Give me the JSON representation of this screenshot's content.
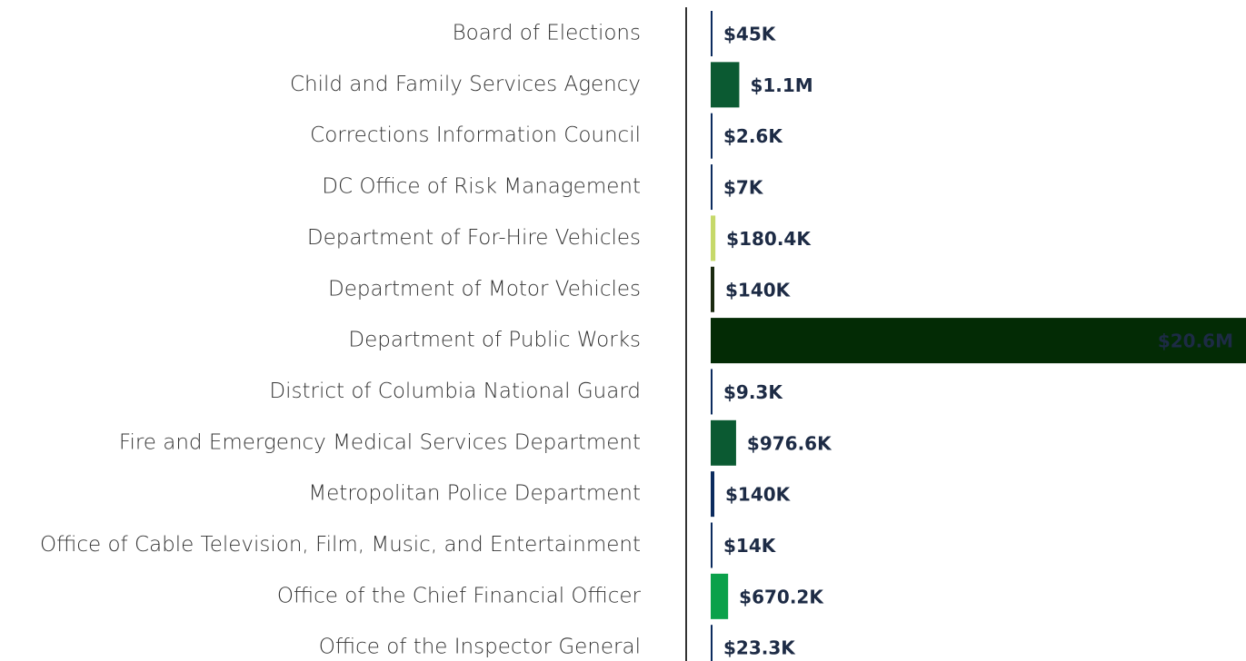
{
  "chart_data": {
    "type": "bar",
    "orientation": "horizontal",
    "categories": [
      "Board of Elections",
      "Child and Family Services Agency",
      "Corrections Information Council",
      "DC Office of Risk Management",
      "Department of For-Hire Vehicles",
      "Department of Motor Vehicles",
      "Department of Public Works",
      "District of Columbia National Guard",
      "Fire and Emergency Medical Services Department",
      "Metropolitan Police Department",
      "Office of Cable Television, Film, Music, and Entertainment",
      "Office of the Chief Financial Officer",
      "Office of the Inspector General"
    ],
    "values": [
      45000,
      1100000,
      2600,
      7000,
      180400,
      140000,
      20600000,
      9300,
      976600,
      140000,
      14000,
      670200,
      23300
    ],
    "value_labels": [
      "$45K",
      "$1.1M",
      "$2.6K",
      "$7K",
      "$180.4K",
      "$140K",
      "$20.6M",
      "$9.3K",
      "$976.6K",
      "$140K",
      "$14K",
      "$670.2K",
      "$23.3K"
    ],
    "colors": [
      "#0b2b5e",
      "#0b5a32",
      "#0b2b5e",
      "#0b2b5e",
      "#c6d96a",
      "#1a2a10",
      "#032b05",
      "#0b2b5e",
      "#0b5a32",
      "#0b2b5e",
      "#0b2b5e",
      "#0aa14a",
      "#0b2b5e"
    ]
  }
}
